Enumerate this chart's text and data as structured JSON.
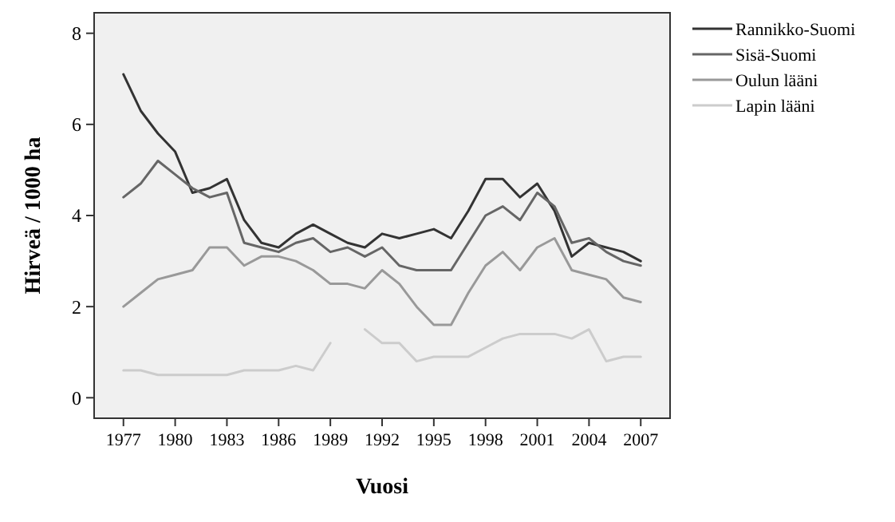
{
  "chart_data": {
    "type": "line",
    "xlabel": "Vuosi",
    "ylabel": "Hirveä / 1000 ha",
    "x": [
      1977,
      1978,
      1979,
      1980,
      1981,
      1982,
      1983,
      1984,
      1985,
      1986,
      1987,
      1988,
      1989,
      1990,
      1991,
      1992,
      1993,
      1994,
      1995,
      1996,
      1997,
      1998,
      1999,
      2000,
      2001,
      2002,
      2003,
      2004,
      2005,
      2006,
      2007
    ],
    "series": [
      {
        "name": "Rannikko-Suomi",
        "color": "#333333",
        "values": [
          7.1,
          6.3,
          5.8,
          5.4,
          4.5,
          4.6,
          4.8,
          3.9,
          3.4,
          3.3,
          3.6,
          3.8,
          3.6,
          3.4,
          3.3,
          3.6,
          3.5,
          3.6,
          3.7,
          3.5,
          4.1,
          4.8,
          4.8,
          4.4,
          4.7,
          4.1,
          3.1,
          3.4,
          3.3,
          3.2,
          3.0
        ]
      },
      {
        "name": "Sisä-Suomi",
        "color": "#666666",
        "values": [
          4.4,
          4.7,
          5.2,
          4.9,
          4.6,
          4.4,
          4.5,
          3.4,
          3.3,
          3.2,
          3.4,
          3.5,
          3.2,
          3.3,
          3.1,
          3.3,
          2.9,
          2.8,
          2.8,
          2.8,
          3.4,
          4.0,
          4.2,
          3.9,
          4.5,
          4.2,
          3.4,
          3.5,
          3.2,
          3.0,
          2.9
        ]
      },
      {
        "name": "Oulun lääni",
        "color": "#999999",
        "values": [
          2.0,
          2.3,
          2.6,
          2.7,
          2.8,
          3.3,
          3.3,
          2.9,
          3.1,
          3.1,
          3.0,
          2.8,
          2.5,
          2.5,
          2.4,
          2.8,
          2.5,
          2.0,
          1.6,
          1.6,
          2.3,
          2.9,
          3.2,
          2.8,
          3.3,
          3.5,
          2.8,
          2.7,
          2.6,
          2.2,
          2.1
        ]
      },
      {
        "name": "Lapin lääni",
        "color": "#cccccc",
        "values": [
          0.6,
          0.6,
          0.5,
          0.5,
          0.5,
          0.5,
          0.5,
          0.6,
          0.6,
          0.6,
          0.7,
          0.6,
          1.2,
          null,
          1.5,
          1.2,
          1.2,
          0.8,
          0.9,
          0.9,
          0.9,
          1.1,
          1.3,
          1.4,
          1.4,
          1.4,
          1.3,
          1.5,
          0.8,
          0.9,
          0.9
        ]
      }
    ],
    "xlim": [
      1975.3,
      2008.7
    ],
    "xticks": [
      1977,
      1980,
      1983,
      1986,
      1989,
      1992,
      1995,
      1998,
      2001,
      2004,
      2007
    ],
    "ylim": [
      -0.45,
      8.45
    ],
    "yticks": [
      0,
      2,
      4,
      6,
      8
    ],
    "legend": "top right",
    "grid": false,
    "marker": "none",
    "line_style": "solid"
  }
}
